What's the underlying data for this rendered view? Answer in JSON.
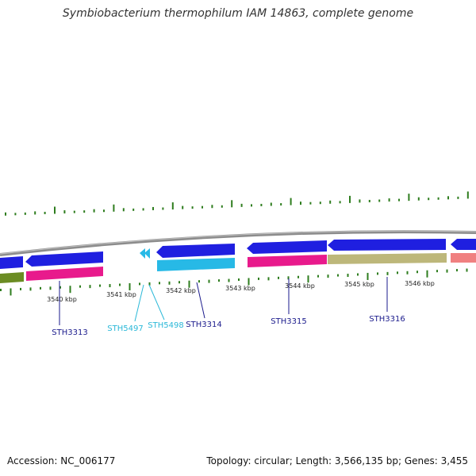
{
  "title": "Symbiobacterium thermophilum IAM 14863, complete genome",
  "footer": {
    "accession": "Accession: NC_006177",
    "summary": "Topology: circular; Length: 3,566,135 bp; Genes: 3,455"
  },
  "colors": {
    "backbone": "#8c8c8c",
    "forward_gene": "#1f1fe0",
    "forward_gene_light": "#27b9e6",
    "label_dark": "#1a1a8c",
    "label_light": "#2ab8d8",
    "gc_ticks": "#2e7d1e",
    "magenta": "#e81a8c",
    "olive_light": "#bdb77a",
    "olive_dark": "#6b8c23",
    "salmon": "#f08080"
  },
  "kbp_ticks": [
    {
      "label": "3540 kbp",
      "kbp": 3540
    },
    {
      "label": "3541 kbp",
      "kbp": 3541
    },
    {
      "label": "3542 kbp",
      "kbp": 3542
    },
    {
      "label": "3543 kbp",
      "kbp": 3543
    },
    {
      "label": "3544 kbp",
      "kbp": 3544
    },
    {
      "label": "3545 kbp",
      "kbp": 3545
    },
    {
      "label": "3546 kbp",
      "kbp": 3546
    }
  ],
  "gene_labels": [
    {
      "name": "STH3313",
      "tone": "dark"
    },
    {
      "name": "STH5497",
      "tone": "light"
    },
    {
      "name": "STH5498",
      "tone": "light"
    },
    {
      "name": "STH3314",
      "tone": "dark"
    },
    {
      "name": "STH3315",
      "tone": "dark"
    },
    {
      "name": "STH3316",
      "tone": "dark"
    }
  ]
}
